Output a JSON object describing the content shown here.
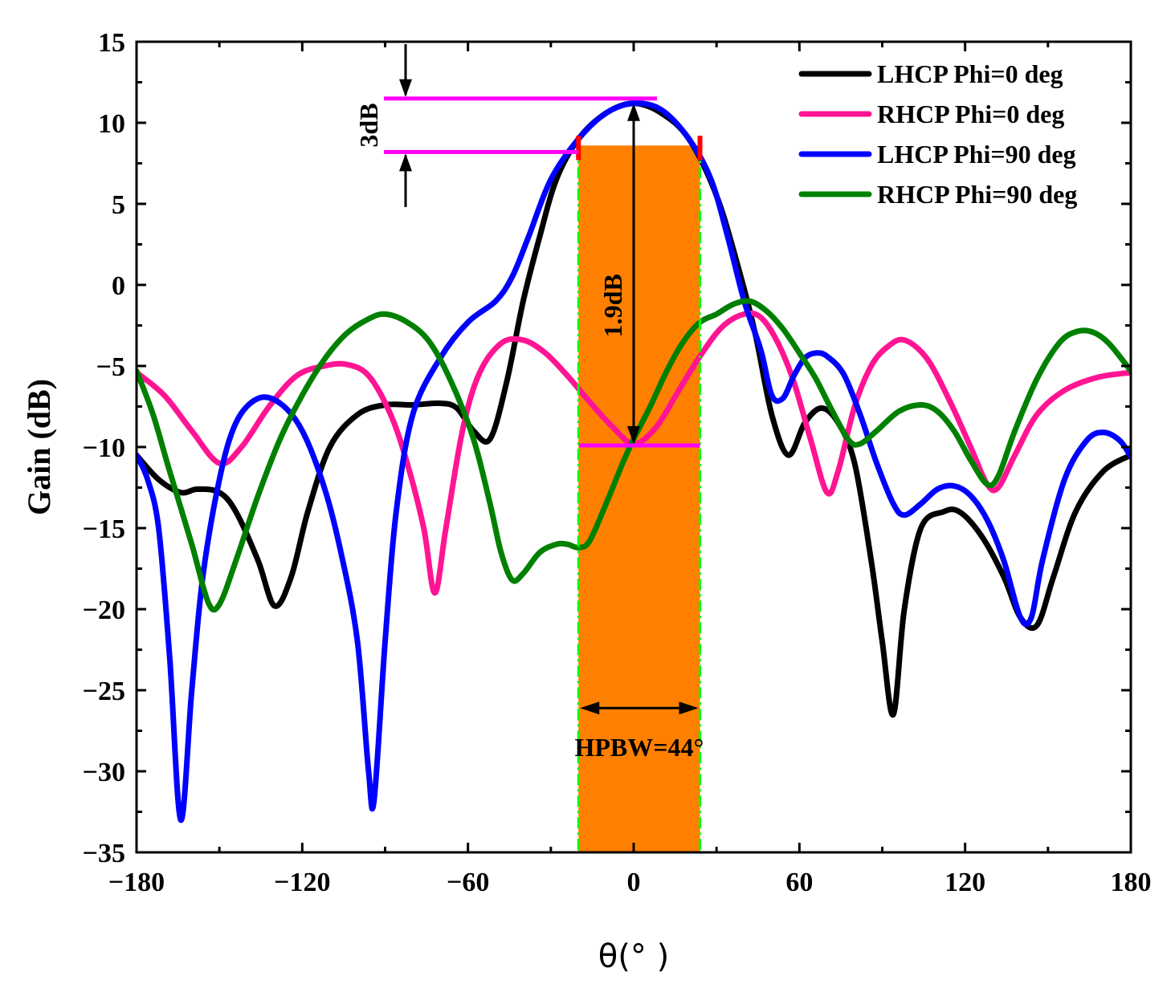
{
  "chart_data": {
    "type": "line",
    "title": "",
    "xlabel": "θ(° )",
    "ylabel": "Gain (dB)",
    "xlim": [
      -180,
      180
    ],
    "ylim": [
      -35,
      15
    ],
    "xticks": [
      -180,
      -120,
      -60,
      0,
      60,
      120,
      180
    ],
    "xtick_labels": [
      "−180",
      "−120",
      "−60",
      "0",
      "60",
      "120",
      "180"
    ],
    "yticks": [
      15,
      10,
      5,
      0,
      -5,
      -10,
      -15,
      -20,
      -25,
      -30,
      -35
    ],
    "ytick_labels": [
      "15",
      "10",
      "5",
      "0",
      "−5",
      "−10",
      "−15",
      "−20",
      "−25",
      "−30",
      "−35"
    ],
    "grid": false,
    "legend_position": "top-right",
    "series": [
      {
        "name": "LHCP Phi=0 deg",
        "color": "#000000",
        "points": [
          [
            -180,
            -10.5
          ],
          [
            -172,
            -12
          ],
          [
            -164,
            -12.8
          ],
          [
            -158,
            -12.6
          ],
          [
            -150,
            -12.8
          ],
          [
            -144,
            -14
          ],
          [
            -136,
            -17
          ],
          [
            -130,
            -19.8
          ],
          [
            -124,
            -18
          ],
          [
            -118,
            -14
          ],
          [
            -110,
            -10
          ],
          [
            -100,
            -8
          ],
          [
            -90,
            -7.4
          ],
          [
            -80,
            -7.4
          ],
          [
            -70,
            -7.3
          ],
          [
            -64,
            -7.6
          ],
          [
            -58,
            -9
          ],
          [
            -52,
            -9.5
          ],
          [
            -46,
            -6
          ],
          [
            -40,
            -1
          ],
          [
            -34,
            3
          ],
          [
            -28,
            6.5
          ],
          [
            -20,
            9
          ],
          [
            -10,
            10.6
          ],
          [
            0,
            11.2
          ],
          [
            10,
            10.6
          ],
          [
            20,
            9
          ],
          [
            30,
            5.5
          ],
          [
            38,
            1
          ],
          [
            44,
            -3
          ],
          [
            50,
            -8
          ],
          [
            56,
            -10.5
          ],
          [
            62,
            -8.5
          ],
          [
            68,
            -7.6
          ],
          [
            74,
            -8.5
          ],
          [
            80,
            -11
          ],
          [
            86,
            -17
          ],
          [
            90,
            -22
          ],
          [
            94,
            -26.5
          ],
          [
            98,
            -20
          ],
          [
            104,
            -15
          ],
          [
            112,
            -14
          ],
          [
            118,
            -14
          ],
          [
            126,
            -15.5
          ],
          [
            134,
            -18
          ],
          [
            140,
            -20.5
          ],
          [
            146,
            -21
          ],
          [
            152,
            -18
          ],
          [
            160,
            -14
          ],
          [
            170,
            -11.5
          ],
          [
            180,
            -10.5
          ]
        ]
      },
      {
        "name": "RHCP Phi=0 deg",
        "color": "#ff1493",
        "points": [
          [
            -180,
            -5.4
          ],
          [
            -170,
            -6.8
          ],
          [
            -160,
            -9
          ],
          [
            -150,
            -11
          ],
          [
            -142,
            -10
          ],
          [
            -132,
            -7.5
          ],
          [
            -122,
            -5.6
          ],
          [
            -112,
            -5
          ],
          [
            -104,
            -4.9
          ],
          [
            -96,
            -5.6
          ],
          [
            -88,
            -8
          ],
          [
            -82,
            -11
          ],
          [
            -76,
            -15
          ],
          [
            -72,
            -19
          ],
          [
            -68,
            -15
          ],
          [
            -62,
            -9
          ],
          [
            -56,
            -5.5
          ],
          [
            -48,
            -3.6
          ],
          [
            -40,
            -3.4
          ],
          [
            -32,
            -4.2
          ],
          [
            -24,
            -5.6
          ],
          [
            -16,
            -7.2
          ],
          [
            -8,
            -8.7
          ],
          [
            0,
            -9.8
          ],
          [
            8,
            -8.8
          ],
          [
            16,
            -6.6
          ],
          [
            24,
            -4.4
          ],
          [
            32,
            -2.6
          ],
          [
            40,
            -1.8
          ],
          [
            46,
            -2
          ],
          [
            52,
            -3.5
          ],
          [
            58,
            -6
          ],
          [
            64,
            -9.5
          ],
          [
            70,
            -12.8
          ],
          [
            74,
            -11.5
          ],
          [
            80,
            -7.5
          ],
          [
            86,
            -5
          ],
          [
            92,
            -3.8
          ],
          [
            98,
            -3.4
          ],
          [
            106,
            -4.5
          ],
          [
            114,
            -7
          ],
          [
            122,
            -10
          ],
          [
            128,
            -12.3
          ],
          [
            132,
            -12.5
          ],
          [
            138,
            -10.5
          ],
          [
            146,
            -8
          ],
          [
            156,
            -6.5
          ],
          [
            168,
            -5.7
          ],
          [
            180,
            -5.4
          ]
        ]
      },
      {
        "name": "LHCP Phi=90 deg",
        "color": "#0000ff",
        "points": [
          [
            -180,
            -10.5
          ],
          [
            -176,
            -12
          ],
          [
            -172,
            -15
          ],
          [
            -168,
            -23
          ],
          [
            -164,
            -33
          ],
          [
            -160,
            -25
          ],
          [
            -156,
            -18
          ],
          [
            -150,
            -12
          ],
          [
            -144,
            -8.5
          ],
          [
            -136,
            -7
          ],
          [
            -128,
            -7.3
          ],
          [
            -120,
            -9
          ],
          [
            -112,
            -12.5
          ],
          [
            -106,
            -16.5
          ],
          [
            -100,
            -22
          ],
          [
            -96,
            -30
          ],
          [
            -94,
            -31.8
          ],
          [
            -90,
            -22
          ],
          [
            -86,
            -14
          ],
          [
            -80,
            -8
          ],
          [
            -70,
            -4.5
          ],
          [
            -60,
            -2.3
          ],
          [
            -50,
            -1
          ],
          [
            -44,
            0.5
          ],
          [
            -38,
            3
          ],
          [
            -30,
            6.5
          ],
          [
            -20,
            9
          ],
          [
            -10,
            10.6
          ],
          [
            0,
            11.2
          ],
          [
            10,
            10.8
          ],
          [
            20,
            9
          ],
          [
            28,
            6.5
          ],
          [
            34,
            3
          ],
          [
            40,
            -1
          ],
          [
            46,
            -4
          ],
          [
            50,
            -6.8
          ],
          [
            54,
            -7
          ],
          [
            58,
            -5.6
          ],
          [
            62,
            -4.5
          ],
          [
            66,
            -4.2
          ],
          [
            70,
            -4.4
          ],
          [
            76,
            -5.5
          ],
          [
            82,
            -8
          ],
          [
            88,
            -11
          ],
          [
            94,
            -13.5
          ],
          [
            98,
            -14.2
          ],
          [
            104,
            -13.5
          ],
          [
            110,
            -12.6
          ],
          [
            116,
            -12.4
          ],
          [
            122,
            -13
          ],
          [
            128,
            -14.5
          ],
          [
            134,
            -17
          ],
          [
            140,
            -20.5
          ],
          [
            144,
            -20.5
          ],
          [
            148,
            -17
          ],
          [
            156,
            -12
          ],
          [
            164,
            -9.6
          ],
          [
            170,
            -9.1
          ],
          [
            176,
            -9.6
          ],
          [
            180,
            -10.6
          ]
        ]
      },
      {
        "name": "RHCP Phi=90 deg",
        "color": "#008000",
        "points": [
          [
            -180,
            -5.3
          ],
          [
            -174,
            -8
          ],
          [
            -168,
            -11.5
          ],
          [
            -160,
            -16
          ],
          [
            -154,
            -19.6
          ],
          [
            -150,
            -19.7
          ],
          [
            -144,
            -17
          ],
          [
            -136,
            -13
          ],
          [
            -128,
            -9.5
          ],
          [
            -120,
            -6.8
          ],
          [
            -112,
            -4.6
          ],
          [
            -104,
            -3
          ],
          [
            -96,
            -2.1
          ],
          [
            -90,
            -1.8
          ],
          [
            -82,
            -2.3
          ],
          [
            -74,
            -3.5
          ],
          [
            -66,
            -6
          ],
          [
            -58,
            -9.5
          ],
          [
            -52,
            -13.5
          ],
          [
            -48,
            -16.5
          ],
          [
            -44,
            -18.2
          ],
          [
            -40,
            -17.8
          ],
          [
            -34,
            -16.5
          ],
          [
            -28,
            -16
          ],
          [
            -24,
            -16
          ],
          [
            -20,
            -16.2
          ],
          [
            -16,
            -15.8
          ],
          [
            -10,
            -13.5
          ],
          [
            -4,
            -11
          ],
          [
            0,
            -9.5
          ],
          [
            6,
            -7.5
          ],
          [
            12,
            -5.3
          ],
          [
            18,
            -3.5
          ],
          [
            24,
            -2.3
          ],
          [
            30,
            -1.8
          ],
          [
            36,
            -1.2
          ],
          [
            42,
            -1
          ],
          [
            48,
            -1.6
          ],
          [
            54,
            -2.7
          ],
          [
            60,
            -4.2
          ],
          [
            66,
            -5.8
          ],
          [
            72,
            -7.8
          ],
          [
            78,
            -9.6
          ],
          [
            82,
            -9.8
          ],
          [
            88,
            -9
          ],
          [
            96,
            -7.8
          ],
          [
            104,
            -7.4
          ],
          [
            110,
            -7.8
          ],
          [
            116,
            -9
          ],
          [
            122,
            -10.8
          ],
          [
            128,
            -12.3
          ],
          [
            132,
            -11.8
          ],
          [
            138,
            -9
          ],
          [
            146,
            -5.8
          ],
          [
            154,
            -3.6
          ],
          [
            160,
            -2.9
          ],
          [
            166,
            -2.9
          ],
          [
            172,
            -3.6
          ],
          [
            180,
            -5.3
          ]
        ]
      }
    ],
    "annotations": {
      "beam_band": {
        "x_start": -20,
        "x_end": 24,
        "color": "#ff8000",
        "edge_color": "#00ff00",
        "marker_color": "#ff0000"
      },
      "three_db": {
        "top_db": 11.5,
        "bottom_db": 8.2,
        "label": "3dB",
        "arrow_x": -82,
        "line_x_start": -90,
        "line_x_end": 8,
        "color": "#ff00ff"
      },
      "axial_ratio": {
        "top_db": 11.3,
        "bottom_db": -9.9,
        "label": "1.9dB",
        "x": 0,
        "color": "#ff00ff"
      },
      "hpbw": {
        "label": "HPBW=44°",
        "y_db": -26.1
      }
    }
  }
}
